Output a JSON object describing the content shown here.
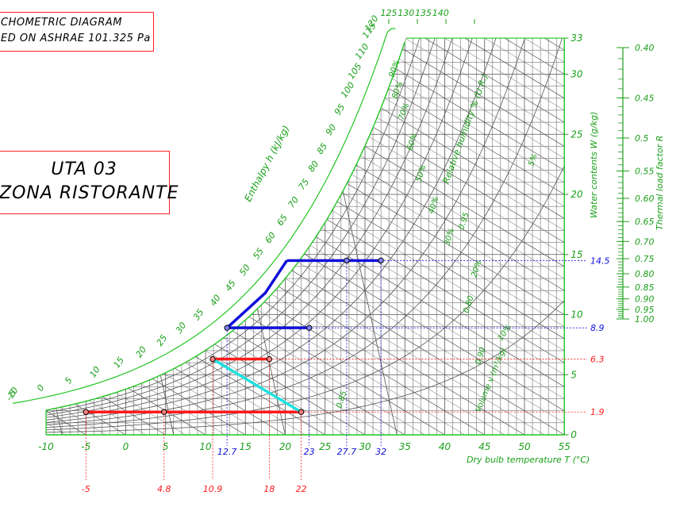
{
  "title_box": {
    "line1": "CHOMETRIC DIAGRAM",
    "line2": "ED ON ASHRAE 101.325 Pa"
  },
  "project_box": {
    "line1": "UTA 03",
    "line2": "ZONA RISTORANTE"
  },
  "axes": {
    "t_ticks": [
      "-10",
      "-5",
      "0",
      "5",
      "10",
      "15",
      "20",
      "25",
      "30",
      "35",
      "40",
      "45",
      "50",
      "55"
    ],
    "t_label": "Dry bulb temperature  T (°C)",
    "w_ticks": [
      "0",
      "5",
      "10",
      "15",
      "20",
      "25",
      "30",
      "33"
    ],
    "w_label": "Water contents W (g/kg)",
    "h_ticks": [
      "-10",
      "-5",
      "0",
      "5",
      "10",
      "15",
      "20",
      "25",
      "30",
      "35",
      "40",
      "45",
      "50",
      "55",
      "60",
      "65",
      "70",
      "75",
      "80",
      "85",
      "90",
      "95",
      "100",
      "105",
      "110",
      "115",
      "120",
      "125",
      "130",
      "135",
      "140"
    ],
    "h_label": "Enthalpy h (kJ/kg)",
    "rh_label": "Relative humidity % (U.R.)",
    "sv_label": "Volume v (m³/kg)",
    "r_ticks": [
      "0.40",
      "0.45",
      "0.5",
      "0.55",
      "0.60",
      "0.65",
      "0.70",
      "0.75",
      "0.80",
      "0.85",
      "0.90",
      "0.95",
      "1.00"
    ],
    "r_label": "Thermal load factor R"
  },
  "rh_labels": [
    "90%",
    "80%",
    "70%",
    "60%",
    "50%",
    "40%",
    "30%",
    "20%",
    "10%",
    "5%"
  ],
  "sv_labels": [
    "0.85",
    "0.80",
    "0.90",
    "0.95"
  ],
  "colors": {
    "grid_green": "#22c522",
    "grid_dark": "#555555",
    "red": "#ff1a1a",
    "blue": "#1010d8",
    "cyan": "#20e0e0"
  },
  "chart_data": {
    "type": "psychrometric",
    "t_range": [
      -10,
      55
    ],
    "w_range": [
      0,
      33
    ],
    "pressure": "101.325 Pa",
    "winter_process": {
      "color": "red",
      "points": [
        {
          "T": -5,
          "W": 1.9
        },
        {
          "T": 4.8,
          "W": 1.9
        },
        {
          "T": 22,
          "W": 1.9
        },
        {
          "T": 10.9,
          "W": 6.3
        },
        {
          "T": 18,
          "W": 6.3
        }
      ],
      "t_labels": [
        "-5",
        "4.8",
        "10.9",
        "18",
        "22"
      ],
      "w_labels": [
        "1.9",
        "6.3"
      ]
    },
    "summer_process": {
      "color": "blue",
      "points": [
        {
          "T": 32,
          "W": 14.5
        },
        {
          "T": 27.7,
          "W": 14.5
        },
        {
          "T": 20.2,
          "W": 14.5
        },
        {
          "T": 12.7,
          "W": 8.9
        },
        {
          "T": 23,
          "W": 8.9
        }
      ],
      "t_labels": [
        "12.7",
        "23",
        "27.7",
        "32"
      ],
      "w_labels": [
        "8.9",
        "14.5"
      ]
    },
    "humidification": {
      "color": "cyan",
      "from": {
        "T": 10.9,
        "W": 6.3
      },
      "to": {
        "T": 22,
        "W": 1.9
      }
    }
  }
}
